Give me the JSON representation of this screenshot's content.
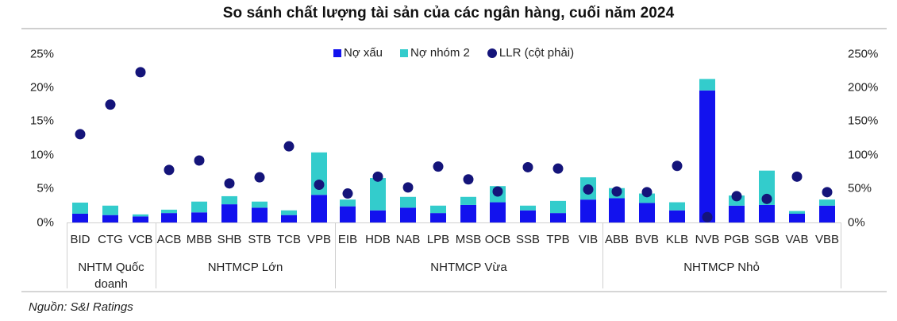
{
  "title": "So sánh chất lượng tài sản của các ngân hàng, cuối năm 2024",
  "source": "Nguồn: S&I Ratings",
  "colors": {
    "npl": "#1212EE",
    "group2": "#33CCCC",
    "llr": "#14147A",
    "grid": "#cfcfcf"
  },
  "legend": [
    {
      "label": "Nợ xấu",
      "marker": "square",
      "color_key": "npl"
    },
    {
      "label": "Nợ nhóm 2",
      "marker": "square",
      "color_key": "group2"
    },
    {
      "label": "LLR (cột phải)",
      "marker": "circle",
      "color_key": "llr"
    }
  ],
  "y_left_ticks": [
    "25%",
    "20%",
    "15%",
    "10%",
    "5%",
    "0%"
  ],
  "y_right_ticks": [
    "250%",
    "200%",
    "150%",
    "100%",
    "50%",
    "0%"
  ],
  "groups": [
    {
      "label": "NHTM Quốc doanh",
      "lines": [
        "NHTM Quốc",
        "doanh"
      ]
    },
    {
      "label": "NHTMCP Lớn",
      "lines": [
        "NHTMCP Lớn"
      ]
    },
    {
      "label": "NHTMCP Vừa",
      "lines": [
        "NHTMCP Vừa"
      ]
    },
    {
      "label": "NHTMCP Nhỏ",
      "lines": [
        "NHTMCP Nhỏ"
      ]
    }
  ],
  "chart_data": {
    "type": "bar",
    "subtype": "stacked bar + scatter (secondary axis)",
    "title": "So sánh chất lượng tài sản của các ngân hàng, cuối năm 2024",
    "categories": [
      "BID",
      "CTG",
      "VCB",
      "ACB",
      "MBB",
      "SHB",
      "STB",
      "TCB",
      "VPB",
      "EIB",
      "HDB",
      "NAB",
      "LPB",
      "MSB",
      "OCB",
      "SSB",
      "TPB",
      "VIB",
      "ABB",
      "BVB",
      "KLB",
      "NVB",
      "PGB",
      "SGB",
      "VAB",
      "VBB"
    ],
    "category_groups": [
      {
        "name": "NHTM Quốc doanh",
        "members": [
          "BID",
          "CTG",
          "VCB"
        ]
      },
      {
        "name": "NHTMCP Lớn",
        "members": [
          "ACB",
          "MBB",
          "SHB",
          "STB",
          "TCB",
          "VPB"
        ]
      },
      {
        "name": "NHTMCP Vừa",
        "members": [
          "EIB",
          "HDB",
          "NAB",
          "LPB",
          "MSB",
          "OCB",
          "SSB",
          "TPB",
          "VIB"
        ]
      },
      {
        "name": "NHTMCP Nhỏ",
        "members": [
          "ABB",
          "BVB",
          "KLB",
          "NVB",
          "PGB",
          "SGB",
          "VAB",
          "VBB"
        ]
      }
    ],
    "series": [
      {
        "name": "Nợ xấu",
        "type": "bar",
        "stack": "quality",
        "axis": "left",
        "values": [
          1.3,
          1.1,
          0.9,
          1.4,
          1.5,
          2.7,
          2.2,
          1.1,
          4.1,
          2.4,
          1.8,
          2.2,
          1.4,
          2.6,
          3.0,
          1.8,
          1.4,
          3.4,
          3.6,
          2.9,
          1.8,
          19.6,
          2.5,
          2.6,
          1.3,
          2.5
        ]
      },
      {
        "name": "Nợ nhóm 2",
        "type": "bar",
        "stack": "quality",
        "axis": "left",
        "values": [
          1.65,
          1.4,
          0.3,
          0.5,
          1.6,
          1.2,
          0.9,
          0.7,
          6.3,
          1.0,
          4.8,
          1.6,
          1.1,
          1.2,
          2.4,
          0.7,
          1.8,
          3.3,
          1.5,
          1.4,
          1.2,
          1.7,
          1.5,
          5.1,
          0.4,
          0.9
        ]
      },
      {
        "name": "LLR (cột phải)",
        "type": "scatter",
        "axis": "right",
        "values": [
          131,
          175,
          223,
          78,
          92,
          58,
          67,
          113,
          56,
          43,
          68,
          52,
          83,
          64,
          46,
          82,
          80,
          49,
          46,
          45,
          84,
          8,
          39,
          35,
          68,
          45
        ]
      }
    ],
    "xlabel": "",
    "ylabel": "",
    "ylim": [
      0,
      25
    ],
    "y2lim": [
      0,
      250
    ],
    "y_ticks": [
      "0%",
      "5%",
      "10%",
      "15%",
      "20%",
      "25%"
    ],
    "y2_ticks": [
      "0%",
      "50%",
      "100%",
      "150%",
      "200%",
      "250%"
    ],
    "grid": false,
    "legend_position": "top-center"
  }
}
